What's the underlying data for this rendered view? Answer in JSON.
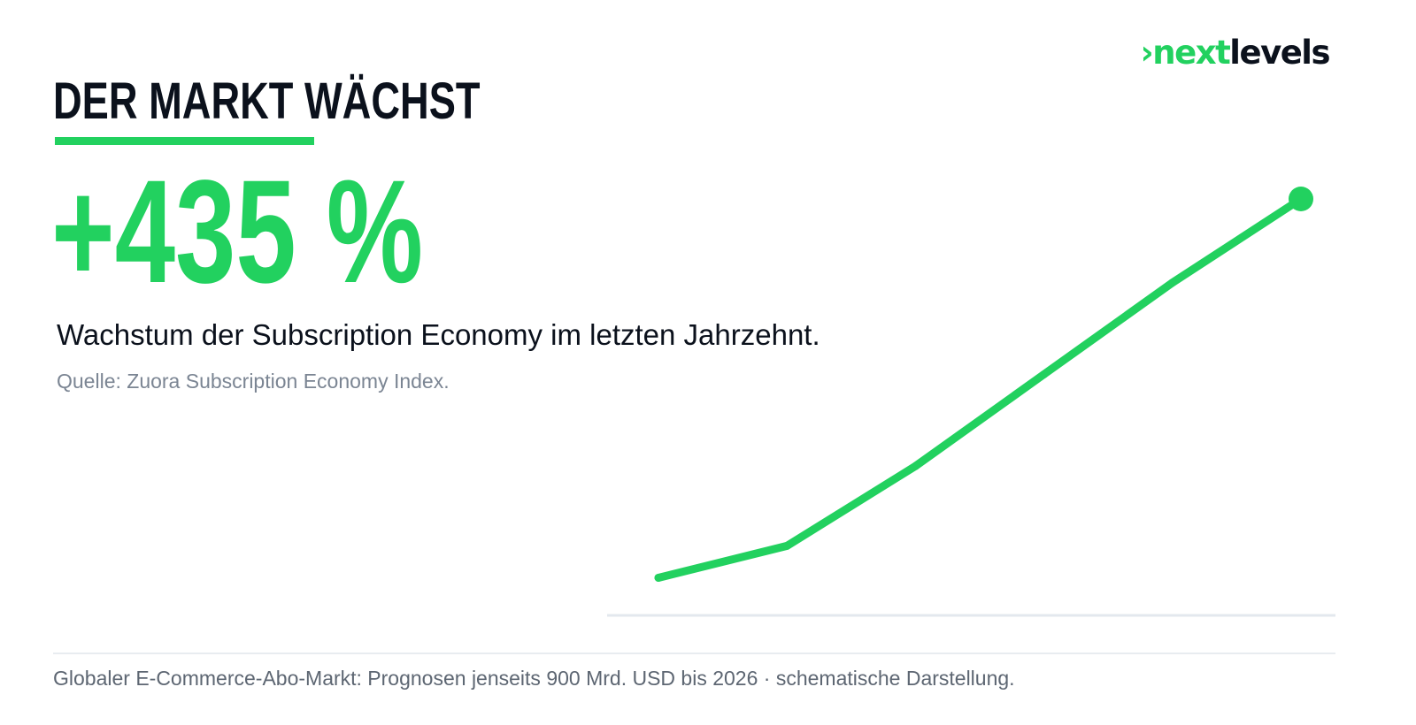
{
  "brand": {
    "logo_prefix": "›",
    "logo_part1": "next",
    "logo_part2": "levels"
  },
  "colors": {
    "accent": "#22d15f",
    "dark": "#0b111c",
    "muted": "#7b8593",
    "axis": "#e3e8ee"
  },
  "header": {
    "title": "DER MARKT WÄCHST"
  },
  "stat": {
    "value": "+435 %"
  },
  "description": "Wachstum der Subscription Economy im letzten Jahrzehnt.",
  "source": "Quelle: Zuora Subscription Economy Index.",
  "footer": "Globaler E-Commerce-Abo-Markt: Prognosen jenseits 900 Mrd. USD bis 2026 · schematische Darstellung.",
  "chart_data": {
    "type": "line",
    "title": "",
    "xlabel": "",
    "ylabel": "",
    "grid": false,
    "legend": "none",
    "end_marker": true,
    "series": [
      {
        "values": [
          5,
          13,
          33,
          56,
          79,
          100
        ]
      }
    ]
  }
}
